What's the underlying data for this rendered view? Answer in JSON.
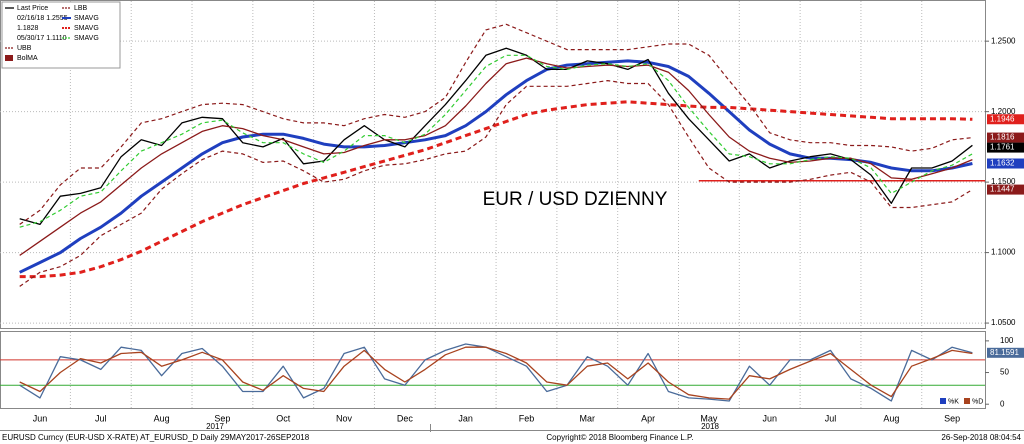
{
  "chart_data": [
    {
      "type": "line",
      "annotation": "EUR / USD DZIENNY",
      "annotation_color": "#e0201c",
      "categories": [
        null,
        "Jun",
        null,
        null,
        "Jul",
        null,
        null,
        "Aug",
        null,
        null,
        "Sep",
        null,
        null,
        "Oct",
        null,
        null,
        "Nov",
        null,
        null,
        "Dec",
        null,
        null,
        "Jan",
        null,
        null,
        "Feb",
        null,
        null,
        "Mar",
        null,
        null,
        "Apr",
        null,
        null,
        "May",
        null,
        null,
        "Jun",
        null,
        null,
        "Jul",
        null,
        null,
        "Aug",
        null,
        null,
        "Sep",
        null
      ],
      "year_labels": [
        "2017",
        "2018"
      ],
      "stats": [
        "02/16/18 1.2555",
        "1.1828",
        "05/30/17 1.1110"
      ],
      "support_level": {
        "value": 1.151,
        "color": "#e0201c"
      },
      "ylim": [
        1.0465,
        1.2785
      ],
      "yticks": [
        {
          "value": 1.05,
          "label": "1.0500"
        },
        {
          "value": 1.1,
          "label": "1.1000"
        },
        {
          "value": 1.15,
          "label": "1.1500"
        },
        {
          "value": 1.2,
          "label": "1.2000"
        },
        {
          "value": 1.25,
          "label": "1.2500"
        }
      ],
      "grid": true,
      "series": [
        {
          "name": "Last Price",
          "color": "#000000",
          "style": "solid",
          "last_label": true,
          "values": [
            1.124,
            1.12,
            1.14,
            1.142,
            1.146,
            1.168,
            1.18,
            1.176,
            1.192,
            1.196,
            1.195,
            1.178,
            1.175,
            1.181,
            1.163,
            1.165,
            1.18,
            1.19,
            1.18,
            1.175,
            1.19,
            1.205,
            1.222,
            1.24,
            1.245,
            1.24,
            1.23,
            1.23,
            1.236,
            1.234,
            1.23,
            1.237,
            1.213,
            1.195,
            1.18,
            1.165,
            1.17,
            1.16,
            1.165,
            1.168,
            1.17,
            1.166,
            1.155,
            1.135,
            1.16,
            1.16,
            1.165,
            1.1761
          ]
        },
        {
          "name": "UBB",
          "color": "#8b1a1a",
          "style": "dashed",
          "last_label": true,
          "values": [
            1.12,
            1.13,
            1.148,
            1.16,
            1.16,
            1.175,
            1.192,
            1.195,
            1.2,
            1.205,
            1.206,
            1.205,
            1.2,
            1.195,
            1.192,
            1.192,
            1.19,
            1.195,
            1.198,
            1.196,
            1.2,
            1.21,
            1.235,
            1.258,
            1.262,
            1.256,
            1.25,
            1.244,
            1.244,
            1.244,
            1.244,
            1.246,
            1.248,
            1.248,
            1.24,
            1.222,
            1.205,
            1.185,
            1.18,
            1.178,
            1.178,
            1.176,
            1.176,
            1.175,
            1.172,
            1.174,
            1.18,
            1.1816
          ]
        },
        {
          "name": "BolMA",
          "color": "#8b1a1a",
          "style": "solid",
          "last_label": false,
          "values": [
            1.098,
            1.108,
            1.118,
            1.128,
            1.136,
            1.148,
            1.16,
            1.17,
            1.178,
            1.186,
            1.19,
            1.188,
            1.183,
            1.18,
            1.175,
            1.17,
            1.171,
            1.176,
            1.18,
            1.18,
            1.183,
            1.19,
            1.204,
            1.22,
            1.234,
            1.238,
            1.234,
            1.231,
            1.232,
            1.233,
            1.232,
            1.233,
            1.228,
            1.215,
            1.198,
            1.182,
            1.172,
            1.167,
            1.164,
            1.165,
            1.167,
            1.167,
            1.163,
            1.153,
            1.152,
            1.156,
            1.16,
            1.166
          ]
        },
        {
          "name": "LBB",
          "color": "#8b1a1a",
          "style": "dashed",
          "last_label": true,
          "values": [
            1.076,
            1.086,
            1.09,
            1.098,
            1.112,
            1.12,
            1.128,
            1.145,
            1.156,
            1.166,
            1.172,
            1.17,
            1.164,
            1.165,
            1.158,
            1.15,
            1.152,
            1.158,
            1.162,
            1.163,
            1.166,
            1.17,
            1.172,
            1.182,
            1.205,
            1.218,
            1.218,
            1.218,
            1.22,
            1.222,
            1.22,
            1.22,
            1.205,
            1.182,
            1.16,
            1.15,
            1.15,
            1.15,
            1.15,
            1.152,
            1.155,
            1.157,
            1.15,
            1.132,
            1.132,
            1.134,
            1.136,
            1.1447
          ]
        },
        {
          "name": "SMAVG",
          "color": "#1f3fbf",
          "style": "bold",
          "last_label": true,
          "values": [
            1.086,
            1.093,
            1.1,
            1.11,
            1.118,
            1.128,
            1.14,
            1.15,
            1.16,
            1.17,
            1.178,
            1.182,
            1.184,
            1.184,
            1.181,
            1.177,
            1.175,
            1.175,
            1.176,
            1.178,
            1.18,
            1.183,
            1.19,
            1.2,
            1.212,
            1.222,
            1.23,
            1.233,
            1.234,
            1.235,
            1.236,
            1.235,
            1.232,
            1.225,
            1.213,
            1.2,
            1.187,
            1.177,
            1.17,
            1.167,
            1.167,
            1.166,
            1.164,
            1.16,
            1.158,
            1.158,
            1.16,
            1.1632
          ]
        },
        {
          "name": "SMAVG",
          "color": "#e0201c",
          "style": "bold-dashed",
          "last_label": true,
          "values": [
            1.083,
            1.083,
            1.084,
            1.086,
            1.09,
            1.095,
            1.101,
            1.108,
            1.115,
            1.122,
            1.128,
            1.134,
            1.139,
            1.144,
            1.149,
            1.153,
            1.157,
            1.161,
            1.165,
            1.169,
            1.173,
            1.178,
            1.183,
            1.188,
            1.193,
            1.198,
            1.201,
            1.203,
            1.205,
            1.206,
            1.207,
            1.206,
            1.205,
            1.204,
            1.203,
            1.203,
            1.202,
            1.201,
            1.2,
            1.199,
            1.198,
            1.197,
            1.196,
            1.195,
            1.195,
            1.195,
            1.195,
            1.1946
          ]
        },
        {
          "name": "SMAVG",
          "color": "#33cc33",
          "style": "dashed",
          "last_label": false,
          "values": [
            1.118,
            1.122,
            1.13,
            1.14,
            1.143,
            1.158,
            1.172,
            1.178,
            1.184,
            1.192,
            1.194,
            1.185,
            1.178,
            1.178,
            1.17,
            1.164,
            1.172,
            1.183,
            1.183,
            1.178,
            1.184,
            1.198,
            1.215,
            1.232,
            1.24,
            1.24,
            1.232,
            1.23,
            1.233,
            1.234,
            1.232,
            1.234,
            1.222,
            1.203,
            1.186,
            1.17,
            1.168,
            1.163,
            1.163,
            1.166,
            1.168,
            1.167,
            1.16,
            1.142,
            1.15,
            1.158,
            1.162,
            1.17
          ]
        }
      ]
    },
    {
      "type": "line",
      "ylim": [
        -6,
        114
      ],
      "yticks": [
        0,
        50,
        100
      ],
      "levels": [
        {
          "value": 70,
          "color": "#d0352b"
        },
        {
          "value": 30,
          "color": "#33aa33"
        }
      ],
      "series": [
        {
          "name": "%K",
          "color": "#4a6b9a",
          "style": "solid",
          "last_label": true,
          "values": [
            30,
            10,
            75,
            70,
            55,
            90,
            85,
            45,
            80,
            88,
            60,
            20,
            20,
            60,
            10,
            25,
            80,
            90,
            40,
            30,
            70,
            85,
            95,
            90,
            75,
            60,
            20,
            30,
            75,
            60,
            30,
            80,
            20,
            10,
            8,
            5,
            60,
            30,
            70,
            70,
            85,
            40,
            25,
            5,
            85,
            70,
            90,
            81.1591
          ]
        },
        {
          "name": "%D",
          "color": "#a8431f",
          "style": "solid",
          "last_label": false,
          "values": [
            35,
            20,
            50,
            72,
            65,
            80,
            82,
            60,
            70,
            82,
            70,
            35,
            22,
            45,
            25,
            20,
            60,
            85,
            55,
            35,
            55,
            78,
            90,
            90,
            80,
            65,
            35,
            30,
            60,
            65,
            40,
            65,
            35,
            15,
            10,
            8,
            45,
            40,
            55,
            68,
            80,
            55,
            30,
            12,
            60,
            72,
            85,
            80
          ]
        }
      ]
    }
  ],
  "footer": {
    "left": "EURUSD Curncy (EUR-USD X-RATE) AT_EURUSD_D  Daily 29MAY2017-26SEP2018",
    "center": "Copyright© 2018 Bloomberg Finance L.P.",
    "right": "26-Sep-2018 08:04:54"
  }
}
